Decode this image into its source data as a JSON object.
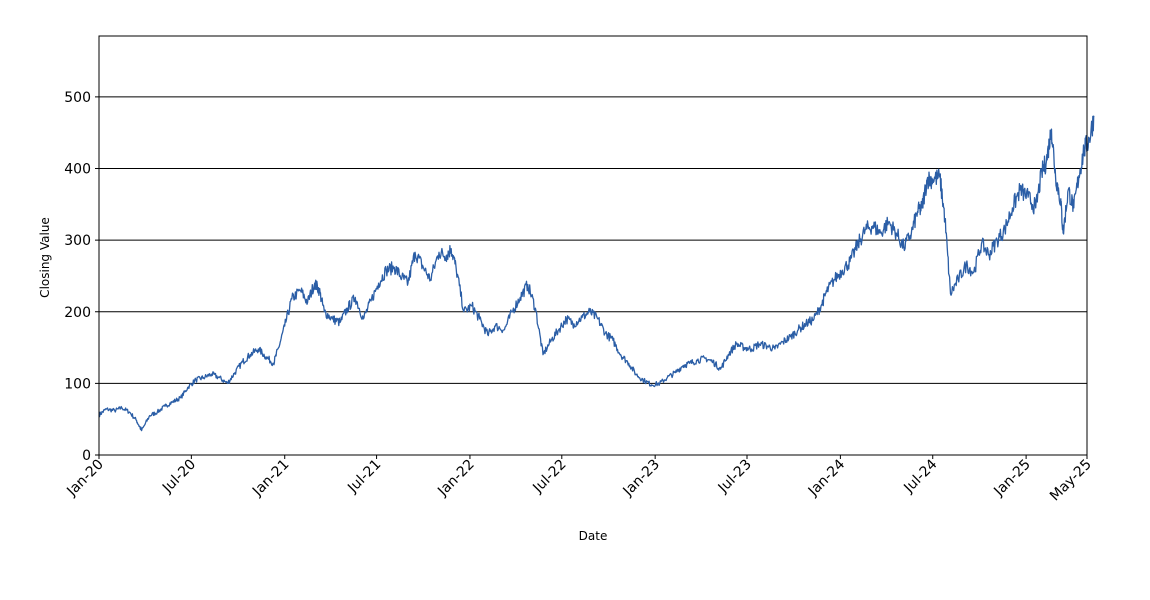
{
  "chart_data": {
    "type": "line",
    "title": "",
    "xlabel": "Date",
    "ylabel": "Closing Value",
    "ylim": [
      0,
      585
    ],
    "xlim": [
      "2020-01",
      "2025-05"
    ],
    "yticks": [
      0,
      100,
      200,
      300,
      400,
      500
    ],
    "xticks": [
      {
        "label": "Jan-20",
        "date": "2020-01"
      },
      {
        "label": "Jul-20",
        "date": "2020-07"
      },
      {
        "label": "Jan-21",
        "date": "2021-01"
      },
      {
        "label": "Jul-21",
        "date": "2021-07"
      },
      {
        "label": "Jan-22",
        "date": "2022-01"
      },
      {
        "label": "Jul-22",
        "date": "2022-07"
      },
      {
        "label": "Jan-23",
        "date": "2023-01"
      },
      {
        "label": "Jul-23",
        "date": "2023-07"
      },
      {
        "label": "Jan-24",
        "date": "2024-01"
      },
      {
        "label": "Jul-24",
        "date": "2024-07"
      },
      {
        "label": "Jan-25",
        "date": "2025-01"
      },
      {
        "label": "May-25",
        "date": "2025-05"
      }
    ],
    "grid": "horizontal",
    "line_color": "#2b5ea6",
    "series": [
      {
        "points": [
          [
            "2020-01-01",
            56
          ],
          [
            "2020-01-15",
            64
          ],
          [
            "2020-02-01",
            62
          ],
          [
            "2020-02-15",
            66
          ],
          [
            "2020-03-01",
            60
          ],
          [
            "2020-03-15",
            48
          ],
          [
            "2020-03-25",
            34
          ],
          [
            "2020-04-10",
            55
          ],
          [
            "2020-04-25",
            60
          ],
          [
            "2020-05-10",
            68
          ],
          [
            "2020-05-25",
            74
          ],
          [
            "2020-06-10",
            80
          ],
          [
            "2020-06-25",
            95
          ],
          [
            "2020-07-10",
            105
          ],
          [
            "2020-07-25",
            108
          ],
          [
            "2020-08-10",
            113
          ],
          [
            "2020-08-25",
            108
          ],
          [
            "2020-09-10",
            100
          ],
          [
            "2020-09-25",
            115
          ],
          [
            "2020-10-10",
            130
          ],
          [
            "2020-10-25",
            140
          ],
          [
            "2020-11-10",
            148
          ],
          [
            "2020-11-25",
            137
          ],
          [
            "2020-12-10",
            128
          ],
          [
            "2020-12-20",
            150
          ],
          [
            "2021-01-01",
            180
          ],
          [
            "2021-01-15",
            218
          ],
          [
            "2021-02-01",
            230
          ],
          [
            "2021-02-15",
            213
          ],
          [
            "2021-03-01",
            240
          ],
          [
            "2021-03-10",
            230
          ],
          [
            "2021-03-20",
            200
          ],
          [
            "2021-04-05",
            190
          ],
          [
            "2021-04-20",
            185
          ],
          [
            "2021-05-05",
            205
          ],
          [
            "2021-05-20",
            220
          ],
          [
            "2021-06-05",
            190
          ],
          [
            "2021-06-20",
            215
          ],
          [
            "2021-07-05",
            240
          ],
          [
            "2021-07-20",
            258
          ],
          [
            "2021-08-05",
            262
          ],
          [
            "2021-08-20",
            248
          ],
          [
            "2021-09-01",
            240
          ],
          [
            "2021-09-15",
            283
          ],
          [
            "2021-10-01",
            262
          ],
          [
            "2021-10-15",
            245
          ],
          [
            "2021-11-01",
            283
          ],
          [
            "2021-11-15",
            278
          ],
          [
            "2021-11-25",
            288
          ],
          [
            "2021-12-05",
            260
          ],
          [
            "2021-12-20",
            200
          ],
          [
            "2022-01-05",
            208
          ],
          [
            "2022-01-20",
            190
          ],
          [
            "2022-02-05",
            168
          ],
          [
            "2022-02-20",
            180
          ],
          [
            "2022-03-10",
            175
          ],
          [
            "2022-03-25",
            200
          ],
          [
            "2022-04-10",
            220
          ],
          [
            "2022-04-25",
            238
          ],
          [
            "2022-05-10",
            205
          ],
          [
            "2022-05-25",
            140
          ],
          [
            "2022-06-10",
            160
          ],
          [
            "2022-06-25",
            175
          ],
          [
            "2022-07-10",
            190
          ],
          [
            "2022-07-25",
            183
          ],
          [
            "2022-08-10",
            192
          ],
          [
            "2022-08-25",
            200
          ],
          [
            "2022-09-10",
            190
          ],
          [
            "2022-09-25",
            170
          ],
          [
            "2022-10-10",
            160
          ],
          [
            "2022-10-25",
            140
          ],
          [
            "2022-11-10",
            128
          ],
          [
            "2022-11-25",
            112
          ],
          [
            "2022-12-10",
            104
          ],
          [
            "2022-12-25",
            98
          ],
          [
            "2023-01-10",
            100
          ],
          [
            "2023-01-25",
            108
          ],
          [
            "2023-02-10",
            115
          ],
          [
            "2023-02-25",
            125
          ],
          [
            "2023-03-10",
            128
          ],
          [
            "2023-03-25",
            132
          ],
          [
            "2023-04-10",
            135
          ],
          [
            "2023-04-25",
            130
          ],
          [
            "2023-05-10",
            120
          ],
          [
            "2023-05-25",
            140
          ],
          [
            "2023-06-10",
            155
          ],
          [
            "2023-06-25",
            150
          ],
          [
            "2023-07-10",
            148
          ],
          [
            "2023-07-25",
            155
          ],
          [
            "2023-08-10",
            152
          ],
          [
            "2023-08-25",
            148
          ],
          [
            "2023-09-10",
            158
          ],
          [
            "2023-09-25",
            165
          ],
          [
            "2023-10-10",
            175
          ],
          [
            "2023-10-25",
            183
          ],
          [
            "2023-11-10",
            190
          ],
          [
            "2023-11-25",
            210
          ],
          [
            "2023-12-05",
            228
          ],
          [
            "2023-12-20",
            245
          ],
          [
            "2024-01-05",
            258
          ],
          [
            "2024-01-20",
            270
          ],
          [
            "2024-02-05",
            295
          ],
          [
            "2024-02-20",
            315
          ],
          [
            "2024-03-05",
            320
          ],
          [
            "2024-03-20",
            310
          ],
          [
            "2024-04-05",
            325
          ],
          [
            "2024-04-20",
            310
          ],
          [
            "2024-05-05",
            290
          ],
          [
            "2024-05-20",
            310
          ],
          [
            "2024-06-01",
            340
          ],
          [
            "2024-06-10",
            345
          ],
          [
            "2024-06-20",
            385
          ],
          [
            "2024-07-01",
            385
          ],
          [
            "2024-07-15",
            388
          ],
          [
            "2024-07-25",
            330
          ],
          [
            "2024-08-05",
            225
          ],
          [
            "2024-08-20",
            245
          ],
          [
            "2024-09-05",
            265
          ],
          [
            "2024-09-20",
            255
          ],
          [
            "2024-10-05",
            295
          ],
          [
            "2024-10-20",
            280
          ],
          [
            "2024-11-05",
            300
          ],
          [
            "2024-11-20",
            315
          ],
          [
            "2024-12-05",
            345
          ],
          [
            "2024-12-20",
            370
          ],
          [
            "2025-01-05",
            360
          ],
          [
            "2025-01-20",
            345
          ],
          [
            "2025-02-01",
            395
          ],
          [
            "2025-02-10",
            410
          ],
          [
            "2025-02-20",
            455
          ],
          [
            "2025-02-28",
            390
          ],
          [
            "2025-03-10",
            355
          ],
          [
            "2025-03-15",
            310
          ],
          [
            "2025-03-25",
            370
          ],
          [
            "2025-04-05",
            345
          ],
          [
            "2025-04-15",
            390
          ],
          [
            "2025-04-25",
            425
          ],
          [
            "2025-05-05",
            440
          ],
          [
            "2025-05-15",
            472
          ]
        ]
      }
    ]
  }
}
